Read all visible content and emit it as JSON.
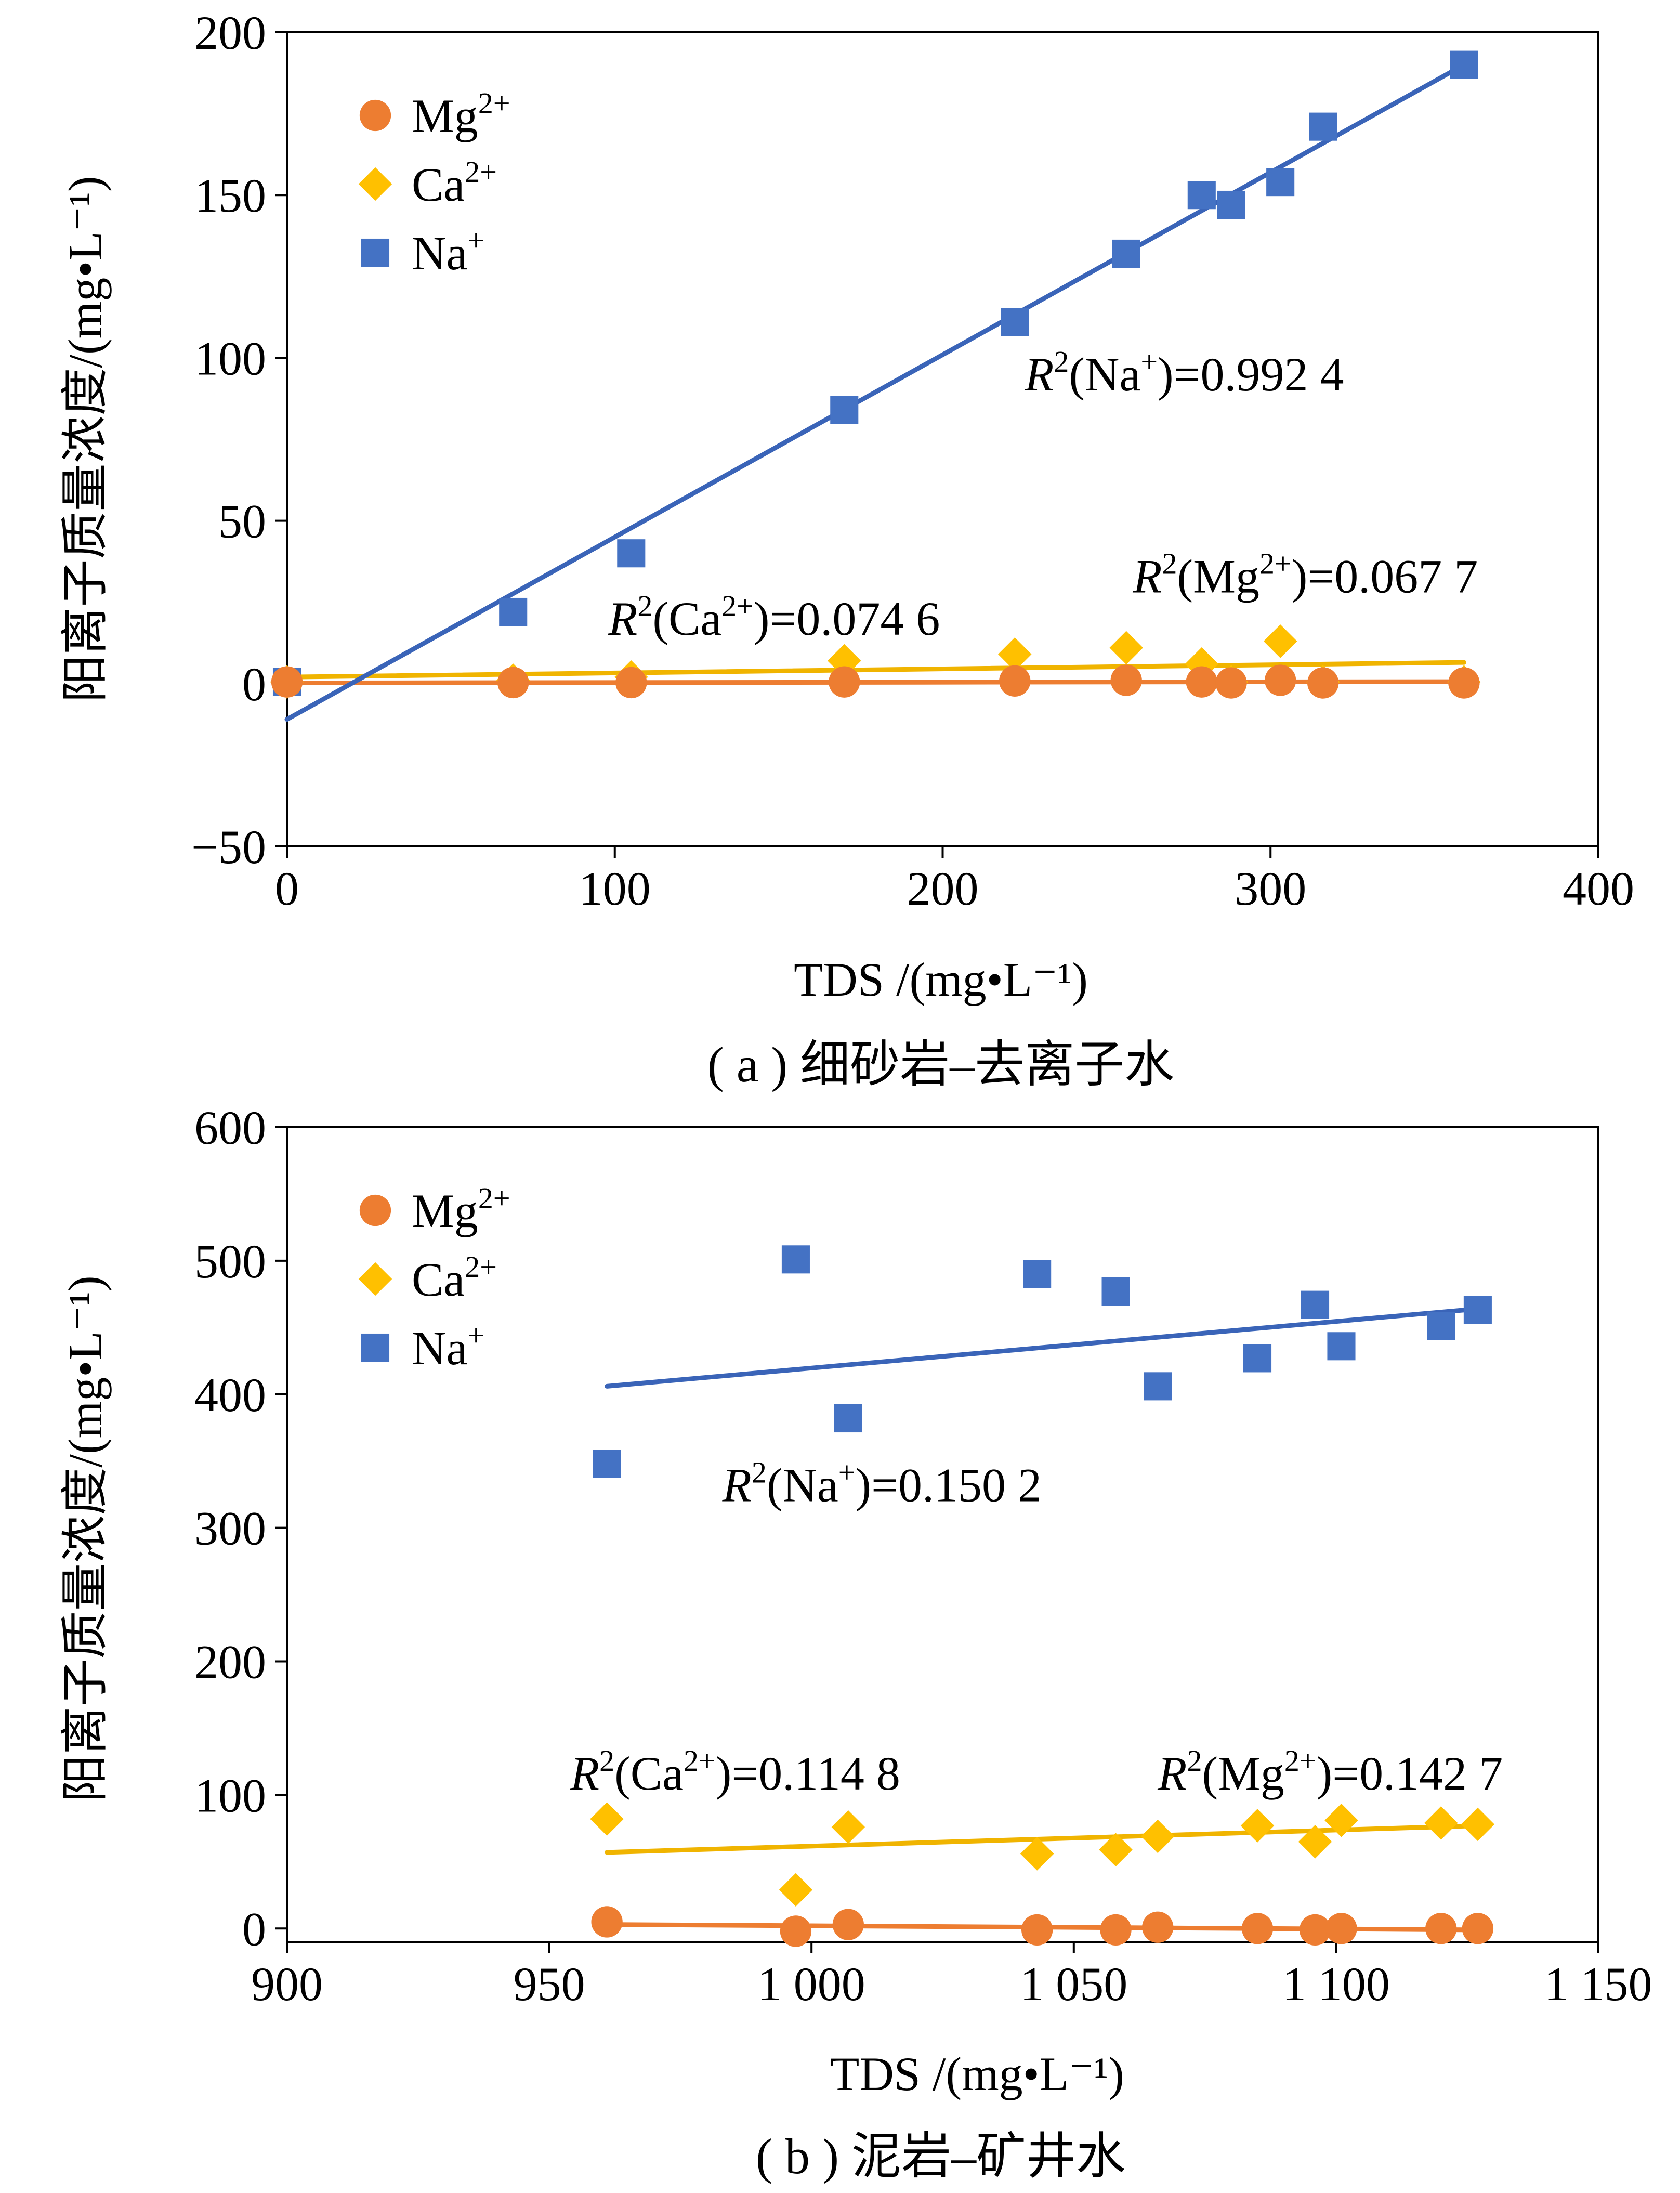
{
  "colors": {
    "Mg": "#ed7d31",
    "Ca": "#ffc000",
    "Na": "#4472c4",
    "Mg_line": "#ed7d31",
    "Ca_line": "#f0b400",
    "Na_line": "#3a64b8"
  },
  "chart_data": [
    {
      "type": "scatter",
      "caption": "( a ) 细砂岩–去离子水",
      "xlabel": "TDS /(mg•L⁻¹)",
      "ylabel": "阳离子质量浓度/(mg•L⁻¹)",
      "xlim": [
        0,
        400
      ],
      "ylim": [
        -50,
        200
      ],
      "xticks": [
        0,
        100,
        200,
        300,
        400
      ],
      "xtick_labels": [
        "0",
        "100",
        "200",
        "300",
        "400"
      ],
      "yticks": [
        -50,
        0,
        50,
        100,
        150,
        200
      ],
      "ytick_labels": [
        "−50",
        "0",
        "50",
        "100",
        "150",
        "200"
      ],
      "grid": false,
      "legend_position": "top-left",
      "legend": [
        {
          "key": "Mg",
          "marker": "circle",
          "label": "Mg",
          "sup": "2+"
        },
        {
          "key": "Ca",
          "marker": "diamond",
          "label": "Ca",
          "sup": "2+"
        },
        {
          "key": "Na",
          "marker": "square",
          "label": "Na",
          "sup": "+"
        }
      ],
      "series": [
        {
          "key": "Mg",
          "marker": "circle",
          "points": [
            [
              0,
              0.5
            ],
            [
              69,
              0.3
            ],
            [
              105,
              0.3
            ],
            [
              170,
              0.5
            ],
            [
              222,
              0.8
            ],
            [
              256,
              1.0
            ],
            [
              279,
              0.5
            ],
            [
              288,
              0.2
            ],
            [
              303,
              1.0
            ],
            [
              316,
              0.2
            ],
            [
              359,
              0.2
            ]
          ],
          "trend": [
            [
              0,
              0.2
            ],
            [
              359,
              0.6
            ]
          ]
        },
        {
          "key": "Ca",
          "marker": "diamond",
          "points": [
            [
              0,
              0.5
            ],
            [
              69,
              1.0
            ],
            [
              105,
              2.0
            ],
            [
              170,
              7.0
            ],
            [
              222,
              9.0
            ],
            [
              256,
              11.0
            ],
            [
              279,
              6.0
            ],
            [
              288,
              0.5
            ],
            [
              303,
              13.0
            ],
            [
              316,
              0.5
            ],
            [
              359,
              0.5
            ]
          ],
          "trend": [
            [
              0,
              2.0
            ],
            [
              359,
              6.5
            ]
          ]
        },
        {
          "key": "Na",
          "marker": "square",
          "points": [
            [
              0,
              0.5
            ],
            [
              69,
              22
            ],
            [
              105,
              40
            ],
            [
              170,
              84
            ],
            [
              222,
              111
            ],
            [
              256,
              132
            ],
            [
              279,
              150
            ],
            [
              288,
              147
            ],
            [
              303,
              154
            ],
            [
              316,
              171
            ],
            [
              359,
              190
            ]
          ],
          "trend": [
            [
              0,
              -11
            ],
            [
              359,
              190
            ]
          ]
        }
      ],
      "annotations": [
        {
          "sym": "R",
          "pre": "(Na",
          "sup": "+",
          "post": ")=0.992 4",
          "x": 225,
          "y": 90
        },
        {
          "sym": "R",
          "pre": "(Ca",
          "sup": "2+",
          "post": ")=0.074 6",
          "x": 98,
          "y": 15
        },
        {
          "sym": "R",
          "pre": "(Mg",
          "sup": "2+",
          "post": ")=0.067 7",
          "x": 258,
          "y": 28
        }
      ]
    },
    {
      "type": "scatter",
      "caption": "( b ) 泥岩–矿井水",
      "xlabel": "TDS /(mg•L⁻¹)",
      "ylabel": "阳离子质量浓度/(mg•L⁻¹)",
      "xlim": [
        900,
        1150
      ],
      "ylim": [
        -10,
        600
      ],
      "xticks": [
        900,
        950,
        1000,
        1050,
        1100,
        1150
      ],
      "xtick_labels": [
        "900",
        "950",
        "1 000",
        "1 050",
        "1 100",
        "1 150"
      ],
      "yticks": [
        0,
        100,
        200,
        300,
        400,
        500,
        600
      ],
      "ytick_labels": [
        "0",
        "100",
        "200",
        "300",
        "400",
        "500",
        "600"
      ],
      "grid": false,
      "legend_position": "top-left",
      "legend": [
        {
          "key": "Mg",
          "marker": "circle",
          "label": "Mg",
          "sup": "2+"
        },
        {
          "key": "Ca",
          "marker": "diamond",
          "label": "Ca",
          "sup": "2+"
        },
        {
          "key": "Na",
          "marker": "square",
          "label": "Na",
          "sup": "+"
        }
      ],
      "series": [
        {
          "key": "Mg",
          "marker": "circle",
          "points": [
            [
              961,
              5
            ],
            [
              997,
              -2
            ],
            [
              1007,
              3
            ],
            [
              1043,
              -1
            ],
            [
              1058,
              -1
            ],
            [
              1066,
              1
            ],
            [
              1085,
              0
            ],
            [
              1096,
              -1
            ],
            [
              1101,
              0
            ],
            [
              1120,
              0
            ],
            [
              1127,
              0
            ]
          ],
          "trend": [
            [
              961,
              3
            ],
            [
              1127,
              -1
            ]
          ]
        },
        {
          "key": "Ca",
          "marker": "diamond",
          "points": [
            [
              961,
              82
            ],
            [
              997,
              29
            ],
            [
              1007,
              76
            ],
            [
              1043,
              56
            ],
            [
              1058,
              59
            ],
            [
              1066,
              69
            ],
            [
              1085,
              77
            ],
            [
              1096,
              65
            ],
            [
              1101,
              81
            ],
            [
              1120,
              79
            ],
            [
              1127,
              78
            ]
          ],
          "trend": [
            [
              961,
              57
            ],
            [
              1127,
              77
            ]
          ]
        },
        {
          "key": "Na",
          "marker": "square",
          "points": [
            [
              961,
              348
            ],
            [
              997,
              501
            ],
            [
              1007,
              382
            ],
            [
              1043,
              490
            ],
            [
              1058,
              477
            ],
            [
              1066,
              406
            ],
            [
              1085,
              427
            ],
            [
              1096,
              467
            ],
            [
              1101,
              436
            ],
            [
              1120,
              451
            ],
            [
              1127,
              463
            ]
          ],
          "trend": [
            [
              961,
              406
            ],
            [
              1127,
              464
            ]
          ]
        }
      ],
      "annotations": [
        {
          "sym": "R",
          "pre": "(Na",
          "sup": "+",
          "post": ")=0.150 2",
          "x": 983,
          "y": 320
        },
        {
          "sym": "R",
          "pre": "(Ca",
          "sup": "2+",
          "post": ")=0.114 8",
          "x": 954,
          "y": 104
        },
        {
          "sym": "R",
          "pre": "(Mg",
          "sup": "2+",
          "post": ")=0.142 7",
          "x": 1066,
          "y": 104
        }
      ]
    }
  ]
}
